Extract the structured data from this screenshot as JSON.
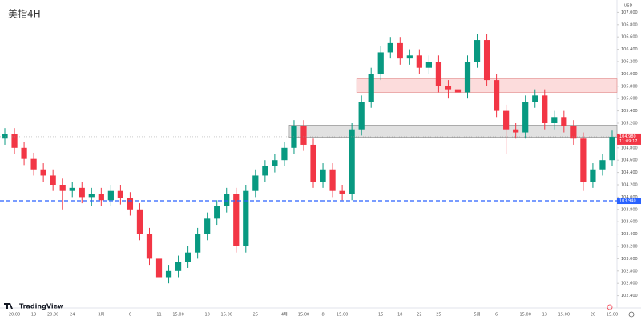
{
  "chart_data": {
    "type": "candlestick",
    "title": "美指4H",
    "currency": "USD",
    "watermark": "TradingView",
    "up_color": "#089981",
    "down_color": "#f23645",
    "categories": [
      null,
      "20:00",
      null,
      "19",
      null,
      "20:00",
      null,
      "24",
      null,
      null,
      "3月",
      null,
      null,
      "6",
      null,
      null,
      "11",
      null,
      "15:00",
      null,
      null,
      "18",
      null,
      "15:00",
      null,
      null,
      "25",
      null,
      null,
      "4月",
      null,
      "15:00",
      null,
      "8",
      null,
      "15:00",
      null,
      null,
      null,
      "15",
      null,
      "18",
      null,
      "22",
      null,
      "25",
      null,
      null,
      null,
      "5月",
      null,
      "6",
      null,
      null,
      "15:00",
      null,
      "13",
      null,
      "15:00",
      null,
      null,
      "20",
      null,
      "15:00"
    ],
    "open": [
      104.95,
      105.02,
      104.8,
      104.62,
      104.45,
      104.35,
      104.2,
      104.1,
      104.15,
      104.0,
      104.05,
      103.95,
      104.1,
      103.98,
      103.8,
      103.4,
      103.0,
      102.7,
      102.8,
      102.95,
      103.1,
      103.4,
      103.65,
      103.85,
      104.05,
      103.2,
      104.1,
      104.35,
      104.5,
      104.6,
      104.8,
      105.15,
      104.85,
      104.25,
      104.45,
      104.1,
      104.05,
      105.1,
      105.55,
      106.0,
      106.35,
      106.5,
      106.25,
      106.3,
      106.1,
      106.2,
      105.8,
      105.75,
      105.7,
      106.2,
      106.55,
      105.9,
      105.4,
      105.1,
      105.05,
      105.55,
      105.65,
      105.2,
      105.3,
      105.15,
      104.95,
      104.25,
      104.45,
      104.6
    ],
    "high": [
      105.12,
      105.12,
      104.9,
      104.72,
      104.55,
      104.45,
      104.3,
      104.25,
      104.25,
      104.15,
      104.15,
      104.2,
      104.2,
      104.08,
      103.9,
      103.5,
      103.1,
      102.9,
      103.05,
      103.2,
      103.5,
      103.75,
      103.95,
      104.15,
      104.15,
      104.2,
      104.45,
      104.6,
      104.7,
      104.9,
      105.25,
      105.25,
      104.95,
      104.55,
      104.55,
      104.2,
      105.2,
      105.65,
      106.1,
      106.45,
      106.6,
      106.6,
      106.4,
      106.4,
      106.3,
      106.3,
      105.9,
      105.85,
      106.3,
      106.65,
      106.65,
      106.0,
      105.5,
      105.2,
      105.65,
      105.75,
      105.75,
      105.4,
      105.4,
      105.25,
      105.05,
      104.55,
      104.7,
      105.08
    ],
    "low": [
      104.85,
      104.7,
      104.52,
      104.35,
      104.25,
      104.1,
      103.8,
      104.0,
      103.9,
      103.85,
      103.85,
      103.85,
      103.88,
      103.7,
      103.3,
      102.9,
      102.5,
      102.6,
      102.7,
      102.85,
      103.0,
      103.3,
      103.55,
      103.75,
      103.1,
      103.1,
      104.0,
      104.25,
      104.4,
      104.5,
      104.7,
      104.75,
      104.15,
      104.15,
      104.0,
      103.95,
      103.95,
      105.0,
      105.45,
      105.9,
      106.25,
      106.15,
      106.15,
      106.0,
      106.0,
      105.7,
      105.6,
      105.5,
      105.6,
      106.1,
      105.8,
      105.3,
      104.7,
      104.95,
      104.95,
      105.45,
      105.1,
      105.1,
      105.05,
      104.85,
      104.1,
      104.15,
      104.35,
      104.5
    ],
    "close": [
      105.02,
      104.8,
      104.62,
      104.45,
      104.35,
      104.2,
      104.1,
      104.15,
      104.0,
      104.05,
      103.95,
      104.1,
      103.98,
      103.8,
      103.4,
      103.0,
      102.7,
      102.8,
      102.95,
      103.1,
      103.4,
      103.65,
      103.85,
      104.05,
      103.2,
      104.1,
      104.35,
      104.5,
      104.6,
      104.8,
      105.15,
      104.85,
      104.25,
      104.45,
      104.1,
      104.05,
      105.1,
      105.55,
      106.0,
      106.35,
      106.5,
      106.25,
      106.3,
      106.1,
      106.2,
      105.8,
      105.75,
      105.7,
      106.2,
      106.55,
      105.9,
      105.4,
      105.1,
      105.05,
      105.55,
      105.65,
      105.2,
      105.3,
      105.15,
      104.95,
      104.25,
      104.45,
      104.6,
      104.98
    ],
    "ylim": [
      102.2,
      107.2
    ],
    "yticks": [
      {
        "value": 102.4,
        "label": "102.400"
      },
      {
        "value": 102.6,
        "label": "102.600"
      },
      {
        "value": 102.8,
        "label": "102.800"
      },
      {
        "value": 103.0,
        "label": "103.000"
      },
      {
        "value": 103.2,
        "label": "103.200"
      },
      {
        "value": 103.4,
        "label": "103.400"
      },
      {
        "value": 103.6,
        "label": "103.600"
      },
      {
        "value": 103.8,
        "label": "103.800"
      },
      {
        "value": 104.0,
        "label": "104.000"
      },
      {
        "value": 104.2,
        "label": "104.200"
      },
      {
        "value": 104.4,
        "label": "104.400"
      },
      {
        "value": 104.6,
        "label": "104.600"
      },
      {
        "value": 104.8,
        "label": "104.800"
      },
      {
        "value": 105.0,
        "label": "105.000"
      },
      {
        "value": 105.2,
        "label": "105.200"
      },
      {
        "value": 105.4,
        "label": "105.400"
      },
      {
        "value": 105.6,
        "label": "105.600"
      },
      {
        "value": 105.8,
        "label": "105.800"
      },
      {
        "value": 106.0,
        "label": "106.000"
      },
      {
        "value": 106.2,
        "label": "106.200"
      },
      {
        "value": 106.4,
        "label": "106.400"
      },
      {
        "value": 106.6,
        "label": "106.600"
      },
      {
        "value": 106.8,
        "label": "106.800"
      },
      {
        "value": 107.0,
        "label": "107.000"
      }
    ],
    "zones": [
      {
        "low": 104.97,
        "high": 105.17,
        "color": "#d9d9d9"
      },
      {
        "low": 105.7,
        "high": 105.92,
        "color": "#fbd3d3"
      }
    ],
    "level_line": {
      "value": 103.94,
      "label": "103.940",
      "color": "#2962ff"
    },
    "current_price": {
      "value": 104.98,
      "label": "104.980",
      "countdown": "11:09:17"
    }
  }
}
